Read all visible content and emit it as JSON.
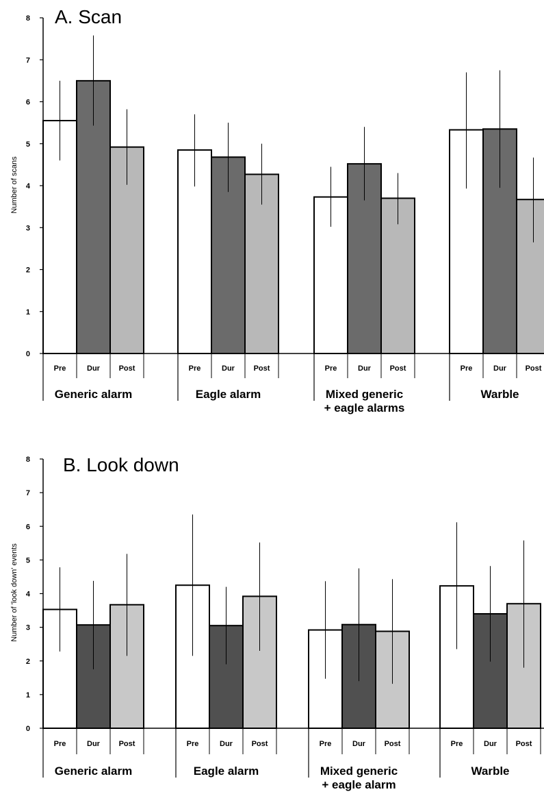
{
  "chart_data": [
    {
      "type": "bar",
      "title": "A. Scan",
      "ylabel": "Number of scans",
      "xlabel": "",
      "ylim": [
        0,
        8
      ],
      "yticks": [
        "0",
        "1",
        "2",
        "3",
        "4",
        "5",
        "6",
        "7",
        "8"
      ],
      "groups": [
        {
          "label": [
            "Generic alarm"
          ]
        },
        {
          "label": [
            "Eagle alarm"
          ]
        },
        {
          "label": [
            "Mixed generic",
            "+ eagle alarms"
          ]
        },
        {
          "label": [
            "Warble"
          ]
        }
      ],
      "bar_labels": [
        "Pre",
        "Dur",
        "Post"
      ],
      "series": [
        {
          "values": [
            5.55,
            4.85,
            3.73,
            5.33
          ],
          "err_low": [
            4.6,
            3.98,
            3.02,
            3.93
          ],
          "err_high": [
            6.5,
            5.7,
            4.45,
            6.7
          ]
        },
        {
          "values": [
            6.5,
            4.68,
            4.52,
            5.35
          ],
          "err_low": [
            5.43,
            3.85,
            3.65,
            3.95
          ],
          "err_high": [
            7.58,
            5.5,
            5.4,
            6.75
          ]
        },
        {
          "values": [
            4.92,
            4.27,
            3.7,
            3.67
          ],
          "err_low": [
            4.02,
            3.55,
            3.08,
            2.65
          ],
          "err_high": [
            5.82,
            5.0,
            4.3,
            4.67
          ]
        }
      ],
      "colors": [
        "#ffffff",
        "#6b6b6b",
        "#b8b8b8"
      ],
      "legend": "none",
      "grid": false
    },
    {
      "type": "bar",
      "title": "B. Look down",
      "ylabel": "Number of 'look down' events",
      "xlabel": "",
      "ylim": [
        0,
        8
      ],
      "yticks": [
        "0",
        "1",
        "2",
        "3",
        "4",
        "5",
        "6",
        "7",
        "8"
      ],
      "groups": [
        {
          "label": [
            "Generic alarm"
          ]
        },
        {
          "label": [
            "Eagle alarm"
          ]
        },
        {
          "label": [
            "Mixed generic",
            "+ eagle alarm"
          ]
        },
        {
          "label": [
            "Warble"
          ]
        }
      ],
      "bar_labels": [
        "Pre",
        "Dur",
        "Post"
      ],
      "series": [
        {
          "values": [
            3.53,
            4.25,
            2.92,
            4.23
          ],
          "err_low": [
            2.28,
            2.15,
            1.47,
            2.35
          ],
          "err_high": [
            4.78,
            6.35,
            4.37,
            6.12
          ]
        },
        {
          "values": [
            3.07,
            3.05,
            3.08,
            3.4
          ],
          "err_low": [
            1.75,
            1.9,
            1.4,
            1.98
          ],
          "err_high": [
            4.38,
            4.2,
            4.75,
            4.82
          ]
        },
        {
          "values": [
            3.67,
            3.92,
            2.88,
            3.7
          ],
          "err_low": [
            2.15,
            2.3,
            1.32,
            1.8
          ],
          "err_high": [
            5.18,
            5.52,
            4.43,
            5.58
          ]
        }
      ],
      "colors": [
        "#ffffff",
        "#505050",
        "#c8c8c8"
      ],
      "legend": "none",
      "grid": false
    }
  ]
}
